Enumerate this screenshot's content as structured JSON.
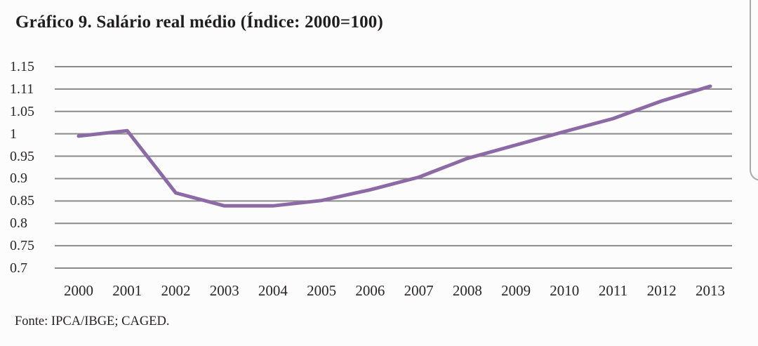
{
  "chart_data": {
    "type": "line",
    "title": "Gráfico 9. Salário real médio (Índice: 2000=100)",
    "source_note": "Fonte: IPCA/IBGE; CAGED.",
    "x_tick_labels": [
      "2000",
      "2001",
      "2002",
      "2003",
      "2004",
      "2005",
      "2006",
      "2007",
      "2008",
      "2009",
      "2010",
      "2011",
      "2012",
      "2013"
    ],
    "y_tick_labels": [
      "1.15",
      "1.11",
      "1.05",
      "1",
      "0.95",
      "0.9",
      "0.85",
      "0.8",
      "0.75",
      "0.7"
    ],
    "y_tick_values": [
      1.15,
      1.11,
      1.05,
      1.0,
      0.95,
      0.9,
      0.85,
      0.8,
      0.75,
      0.7
    ],
    "ylim": [
      0.7,
      1.15
    ],
    "grid": "horizontal",
    "legend": "none",
    "series": [
      {
        "name": "Salário real médio (Índice: 2000=100)",
        "x": [
          2000,
          2001,
          2002,
          2003,
          2004,
          2005,
          2006,
          2007,
          2008,
          2009,
          2010,
          2011,
          2012,
          2013
        ],
        "values": [
          0.995,
          1.007,
          0.868,
          0.839,
          0.839,
          0.851,
          0.875,
          0.903,
          0.945,
          0.975,
          1.005,
          1.034,
          1.078,
          1.115
        ]
      }
    ],
    "colors": {
      "line": "#8c6aa5",
      "grid": "#8a8a8a",
      "text": "#2a2627",
      "background": "#fcfcfc",
      "scrollbar": "#a9a9a9"
    }
  }
}
